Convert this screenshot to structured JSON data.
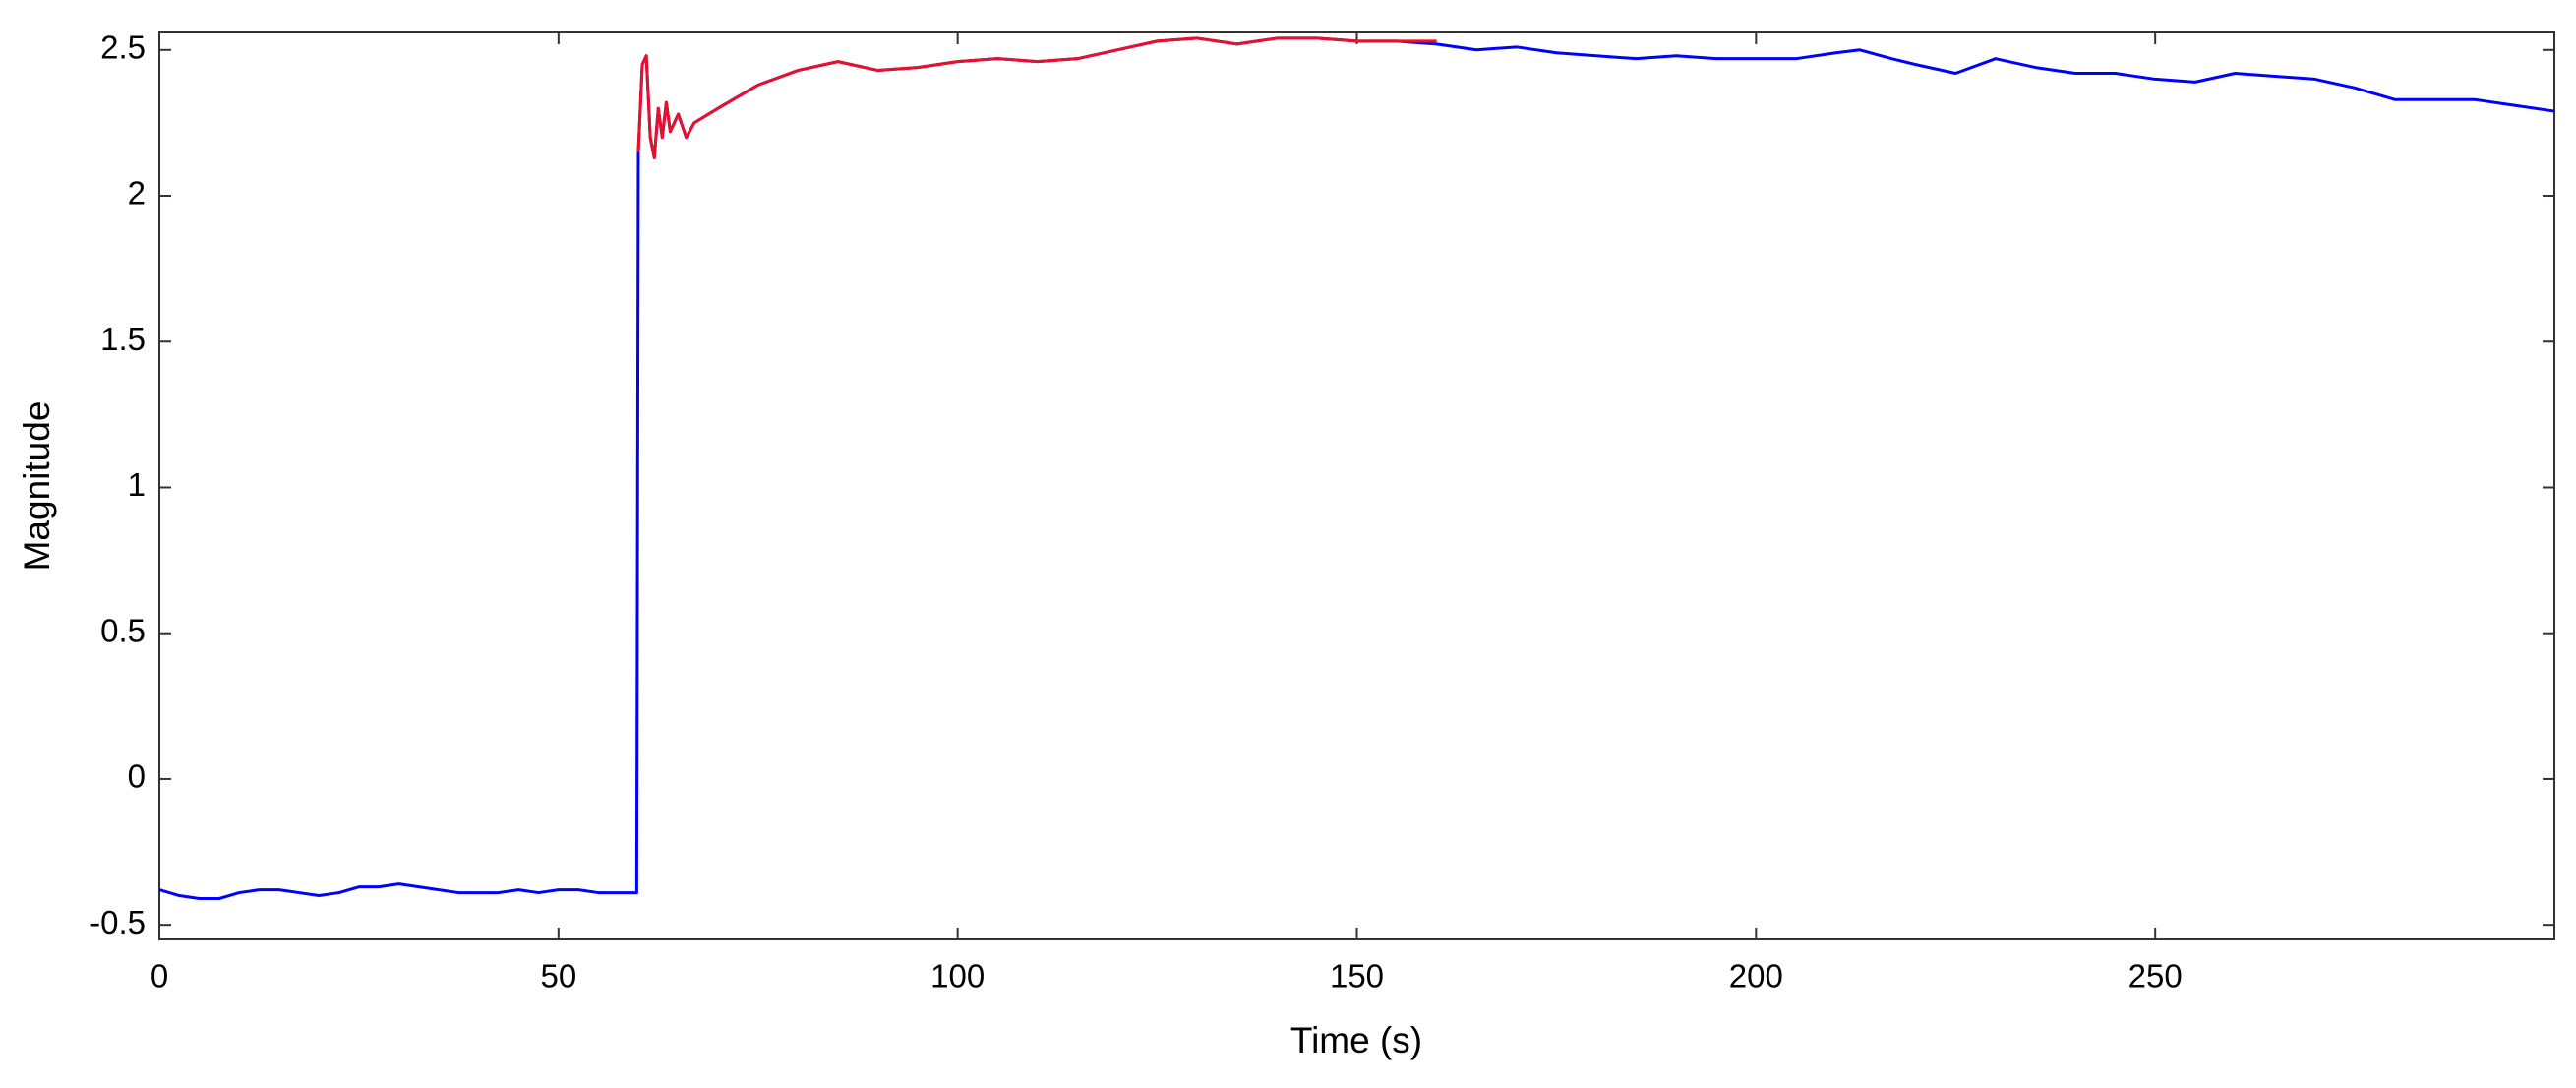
{
  "chart_data": {
    "type": "line",
    "xlabel": "Time (s)",
    "ylabel": "Magnitude",
    "xlim": [
      0,
      300
    ],
    "ylim": [
      -0.55,
      2.56
    ],
    "xticks": [
      0,
      50,
      100,
      150,
      200,
      250
    ],
    "yticks": [
      -0.5,
      0,
      0.5,
      1,
      1.5,
      2,
      2.5
    ],
    "grid": false,
    "series": [
      {
        "color": "#0000ff",
        "x": [
          0,
          2.5,
          5,
          7.5,
          10,
          12.5,
          15,
          17.5,
          20,
          22.5,
          25,
          27.5,
          30,
          32.5,
          35,
          37.5,
          40,
          42.5,
          45,
          47.5,
          50,
          52.5,
          55,
          57.5,
          59.8,
          60,
          60.5,
          61,
          61.5,
          62,
          62.5,
          63,
          63.5,
          64,
          65,
          66,
          67,
          70,
          75,
          80,
          85,
          90,
          95,
          100,
          105,
          110,
          115,
          120,
          125,
          130,
          135,
          140,
          145,
          150,
          155,
          160,
          165,
          170,
          175,
          180,
          185,
          190,
          195,
          200,
          205,
          210,
          213,
          217,
          220,
          225,
          230,
          235,
          240,
          245,
          250,
          255,
          260,
          265,
          270,
          275,
          280,
          285,
          290,
          295,
          300
        ],
        "values": [
          -0.38,
          -0.4,
          -0.41,
          -0.41,
          -0.39,
          -0.38,
          -0.38,
          -0.39,
          -0.4,
          -0.39,
          -0.37,
          -0.37,
          -0.36,
          -0.37,
          -0.38,
          -0.39,
          -0.39,
          -0.39,
          -0.38,
          -0.39,
          -0.38,
          -0.38,
          -0.39,
          -0.39,
          -0.39,
          2.15,
          2.45,
          2.48,
          2.2,
          2.13,
          2.3,
          2.2,
          2.32,
          2.22,
          2.28,
          2.2,
          2.25,
          2.3,
          2.38,
          2.43,
          2.46,
          2.43,
          2.44,
          2.46,
          2.47,
          2.46,
          2.47,
          2.5,
          2.53,
          2.54,
          2.52,
          2.54,
          2.54,
          2.53,
          2.53,
          2.52,
          2.5,
          2.51,
          2.49,
          2.48,
          2.47,
          2.48,
          2.47,
          2.47,
          2.47,
          2.49,
          2.5,
          2.47,
          2.45,
          2.42,
          2.47,
          2.44,
          2.42,
          2.42,
          2.4,
          2.39,
          2.42,
          2.41,
          2.4,
          2.37,
          2.33,
          2.33,
          2.33,
          2.31,
          2.29
        ]
      },
      {
        "color": "#e8102a",
        "x": [
          60,
          60.5,
          61,
          61.5,
          62,
          62.5,
          63,
          63.5,
          64,
          65,
          66,
          67,
          70,
          75,
          80,
          85,
          90,
          95,
          100,
          105,
          110,
          115,
          120,
          125,
          130,
          135,
          140,
          145,
          150,
          155,
          160
        ],
        "values": [
          2.15,
          2.45,
          2.48,
          2.2,
          2.13,
          2.3,
          2.2,
          2.32,
          2.22,
          2.28,
          2.2,
          2.25,
          2.3,
          2.38,
          2.43,
          2.46,
          2.43,
          2.44,
          2.46,
          2.47,
          2.46,
          2.47,
          2.5,
          2.53,
          2.54,
          2.52,
          2.54,
          2.54,
          2.53,
          2.53,
          2.53
        ]
      }
    ]
  }
}
